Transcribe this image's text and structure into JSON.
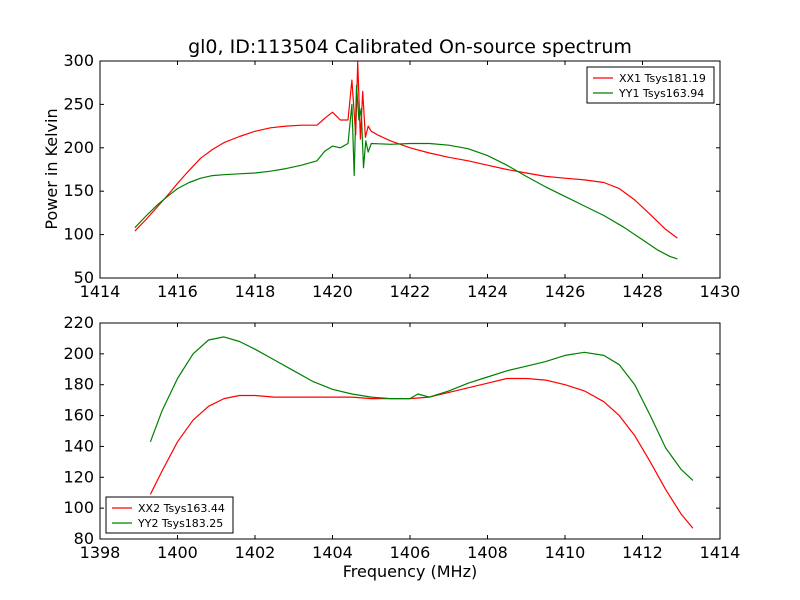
{
  "chart_data": [
    {
      "type": "line",
      "title": "gl0, ID:113504 Calibrated On-source spectrum",
      "xlabel": "",
      "ylabel": "Power in Kelvin",
      "xlim": [
        1414,
        1430
      ],
      "ylim": [
        50,
        300
      ],
      "xticks": [
        "1414",
        "1416",
        "1418",
        "1420",
        "1422",
        "1424",
        "1426",
        "1428",
        "1430"
      ],
      "yticks": [
        "50",
        "100",
        "150",
        "200",
        "250",
        "300"
      ],
      "grid": false,
      "legend_position": "top-right",
      "series": [
        {
          "name": "XX1 Tsys181.19",
          "color": "#ff0000",
          "x": [
            1414.9,
            1415.2,
            1415.5,
            1415.8,
            1416.0,
            1416.3,
            1416.6,
            1416.9,
            1417.2,
            1417.6,
            1418.0,
            1418.4,
            1418.8,
            1419.2,
            1419.6,
            1419.8,
            1420.0,
            1420.2,
            1420.4,
            1420.5,
            1420.6,
            1420.65,
            1420.72,
            1420.78,
            1420.85,
            1420.92,
            1421.0,
            1421.2,
            1421.5,
            1422.0,
            1422.5,
            1423.0,
            1423.5,
            1424.0,
            1424.5,
            1425.0,
            1425.5,
            1426.0,
            1426.5,
            1427.0,
            1427.4,
            1427.8,
            1428.2,
            1428.6,
            1428.9
          ],
          "y": [
            104,
            118,
            133,
            148,
            159,
            174,
            188,
            198,
            206,
            213,
            219,
            223,
            225,
            226,
            226,
            234,
            241,
            232,
            232,
            278,
            215,
            299,
            210,
            265,
            212,
            225,
            219,
            214,
            208,
            200,
            194,
            189,
            185,
            180,
            175,
            171,
            167,
            165,
            163,
            160,
            153,
            140,
            123,
            106,
            96
          ]
        },
        {
          "name": "YY1 Tsys163.94",
          "color": "#008000",
          "x": [
            1414.9,
            1415.2,
            1415.5,
            1415.8,
            1416.0,
            1416.3,
            1416.6,
            1416.9,
            1417.2,
            1417.6,
            1418.0,
            1418.4,
            1418.8,
            1419.2,
            1419.6,
            1419.8,
            1420.0,
            1420.2,
            1420.4,
            1420.5,
            1420.56,
            1420.62,
            1420.68,
            1420.74,
            1420.8,
            1420.86,
            1420.92,
            1421.0,
            1421.5,
            1422.0,
            1422.5,
            1423.0,
            1423.5,
            1424.0,
            1424.5,
            1425.0,
            1425.5,
            1426.0,
            1426.5,
            1427.0,
            1427.5,
            1428.0,
            1428.4,
            1428.7,
            1428.9
          ],
          "y": [
            108,
            122,
            135,
            146,
            153,
            160,
            165,
            168,
            169,
            170,
            171,
            173,
            176,
            180,
            185,
            196,
            202,
            200,
            205,
            250,
            168,
            272,
            232,
            245,
            177,
            208,
            195,
            205,
            204,
            205,
            205,
            203,
            199,
            191,
            180,
            167,
            155,
            144,
            133,
            122,
            109,
            94,
            82,
            75,
            72
          ]
        }
      ]
    },
    {
      "type": "line",
      "title": "",
      "xlabel": "Frequency (MHz)",
      "ylabel": "",
      "xlim": [
        1398,
        1414
      ],
      "ylim": [
        80,
        220
      ],
      "xticks": [
        "1398",
        "1400",
        "1402",
        "1404",
        "1406",
        "1408",
        "1410",
        "1412",
        "1414"
      ],
      "yticks": [
        "80",
        "100",
        "120",
        "140",
        "160",
        "180",
        "200",
        "220"
      ],
      "grid": false,
      "legend_position": "bottom-left",
      "series": [
        {
          "name": "XX2 Tsys163.44",
          "color": "#ff0000",
          "x": [
            1399.3,
            1399.6,
            1400.0,
            1400.4,
            1400.8,
            1401.2,
            1401.6,
            1402.0,
            1402.5,
            1403.0,
            1403.5,
            1404.0,
            1404.5,
            1405.0,
            1405.5,
            1406.0,
            1406.5,
            1407.0,
            1407.5,
            1408.0,
            1408.5,
            1409.0,
            1409.5,
            1410.0,
            1410.5,
            1411.0,
            1411.4,
            1411.8,
            1412.2,
            1412.6,
            1413.0,
            1413.3
          ],
          "y": [
            109,
            124,
            143,
            157,
            166,
            171,
            173,
            173,
            172,
            172,
            172,
            172,
            172,
            171,
            171,
            171,
            172,
            175,
            178,
            181,
            184,
            184,
            183,
            180,
            176,
            169,
            160,
            147,
            130,
            112,
            96,
            87
          ]
        },
        {
          "name": "YY2 Tsys183.25",
          "color": "#008000",
          "x": [
            1399.3,
            1399.6,
            1400.0,
            1400.4,
            1400.8,
            1401.2,
            1401.6,
            1402.0,
            1402.5,
            1403.0,
            1403.5,
            1404.0,
            1404.5,
            1405.0,
            1405.5,
            1406.0,
            1406.2,
            1406.5,
            1407.0,
            1407.5,
            1408.0,
            1408.5,
            1409.0,
            1409.5,
            1410.0,
            1410.5,
            1411.0,
            1411.4,
            1411.8,
            1412.2,
            1412.6,
            1413.0,
            1413.3
          ],
          "y": [
            143,
            163,
            184,
            200,
            209,
            211,
            208,
            203,
            196,
            189,
            182,
            177,
            174,
            172,
            171,
            171,
            174,
            172,
            176,
            181,
            185,
            189,
            192,
            195,
            199,
            201,
            199,
            193,
            180,
            160,
            139,
            125,
            118
          ]
        }
      ]
    }
  ]
}
